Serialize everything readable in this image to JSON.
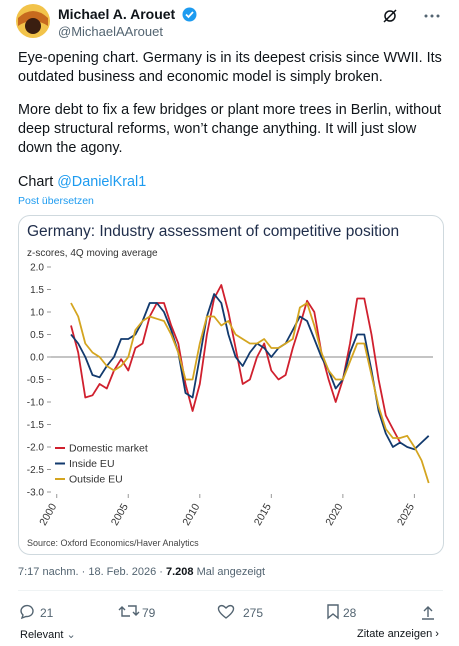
{
  "header": {
    "name": "Michael A. Arouet",
    "handle": "@MichaelAArouet"
  },
  "body": {
    "paragraphs": [
      "Eye-opening chart. Germany is in its deepest crisis since WWII. Its outdated business and economic model is simply broken.",
      "More debt to fix a few bridges or plant more trees in Berlin, without deep structural reforms, won’t change anything. It will just slow down the agony."
    ],
    "chart_prefix": "Chart",
    "mention": "@DanielKral1",
    "translate": "Post übersetzen"
  },
  "chart_data": {
    "type": "line",
    "title": "Germany: Industry assessment of competitive position",
    "subtitle": "z-scores, 4Q moving average",
    "source": "Source: Oxford Economics/Haver Analytics",
    "x": [
      2001,
      2001.5,
      2002,
      2002.5,
      2003,
      2003.5,
      2004,
      2004.5,
      2005,
      2005.5,
      2006,
      2006.5,
      2007,
      2007.5,
      2008,
      2008.5,
      2009,
      2009.5,
      2010,
      2010.5,
      2011,
      2011.5,
      2012,
      2012.5,
      2013,
      2013.5,
      2014,
      2014.5,
      2015,
      2015.5,
      2016,
      2016.5,
      2017,
      2017.5,
      2018,
      2018.5,
      2019,
      2019.5,
      2020,
      2020.5,
      2021,
      2021.5,
      2022,
      2022.5,
      2023,
      2023.5,
      2024,
      2024.5,
      2025,
      2025.5,
      2026
    ],
    "series": [
      {
        "name": "Domestic market",
        "color": "#d0202e",
        "values": [
          0.7,
          0.1,
          -0.9,
          -0.85,
          -0.6,
          -0.7,
          -0.3,
          -0.05,
          -0.3,
          0.2,
          0.3,
          0.9,
          1.2,
          1.2,
          0.7,
          0.3,
          -0.6,
          -1.2,
          -0.6,
          0.5,
          1.3,
          1.6,
          1.0,
          0.2,
          -0.6,
          -0.5,
          0.0,
          0.3,
          -0.3,
          -0.5,
          -0.4,
          0.2,
          0.7,
          1.25,
          1.0,
          0.1,
          -0.5,
          -1.0,
          -0.5,
          0.3,
          1.3,
          1.3,
          0.5,
          -0.5,
          -1.3,
          -1.6,
          -1.9,
          null,
          null,
          null,
          null
        ]
      },
      {
        "name": "Inside EU",
        "color": "#123a6e",
        "values": [
          0.5,
          0.3,
          0.0,
          -0.4,
          -0.45,
          -0.2,
          0.0,
          0.4,
          0.4,
          0.5,
          0.8,
          1.2,
          1.2,
          1.0,
          0.6,
          0.1,
          -0.8,
          -0.9,
          0.0,
          0.9,
          1.4,
          1.2,
          0.5,
          0.0,
          -0.2,
          0.1,
          0.3,
          0.2,
          0.0,
          0.2,
          0.3,
          0.6,
          0.9,
          0.8,
          0.4,
          0.0,
          -0.3,
          -0.7,
          -0.5,
          0.1,
          0.5,
          0.5,
          -0.3,
          -1.2,
          -1.7,
          -2.0,
          -1.9,
          -2.0,
          -2.05,
          -1.9,
          -1.75
        ]
      },
      {
        "name": "Outside EU",
        "color": "#d4a520",
        "values": [
          1.2,
          0.9,
          0.3,
          0.1,
          0.0,
          -0.2,
          -0.3,
          -0.2,
          0.0,
          0.6,
          0.8,
          0.9,
          0.85,
          0.8,
          0.5,
          0.1,
          -0.5,
          -0.5,
          0.3,
          0.9,
          0.9,
          0.7,
          0.8,
          0.5,
          0.4,
          0.3,
          0.3,
          0.4,
          0.2,
          0.2,
          0.3,
          0.4,
          1.1,
          1.2,
          0.7,
          0.1,
          -0.3,
          -0.5,
          -0.5,
          -0.1,
          0.3,
          0.3,
          -0.4,
          -1.1,
          -1.6,
          -1.8,
          -1.8,
          -1.75,
          -2.0,
          -2.3,
          -2.8
        ]
      }
    ],
    "xlim": [
      1999.6,
      2026.3
    ],
    "xticks": [
      2000,
      2005,
      2010,
      2015,
      2020,
      2025
    ],
    "ylim": [
      -3,
      2
    ],
    "yticks": [
      {
        "value": 2,
        "label": "2.0"
      },
      1.5,
      {
        "value": 1,
        "label": "1.0"
      },
      0.5,
      {
        "value": 0,
        "label": "0.0"
      },
      -0.5,
      {
        "value": -1,
        "label": "-1.0"
      },
      -1.5,
      {
        "value": -2,
        "label": "-2.0"
      },
      -2.5,
      {
        "value": -3,
        "label": "-3.0"
      }
    ],
    "zero_line": true,
    "legend": "lower left"
  },
  "footer": {
    "time": "7:17 nachm.",
    "date": "18. Feb. 2026",
    "views": "7.208",
    "views_label": "Mal angezeigt"
  },
  "actions": {
    "replies": "21",
    "reposts": "79",
    "likes": "275",
    "bookmarks": "28"
  },
  "bottom": {
    "sort": "Relevant",
    "quotes": "Zitate anzeigen"
  }
}
